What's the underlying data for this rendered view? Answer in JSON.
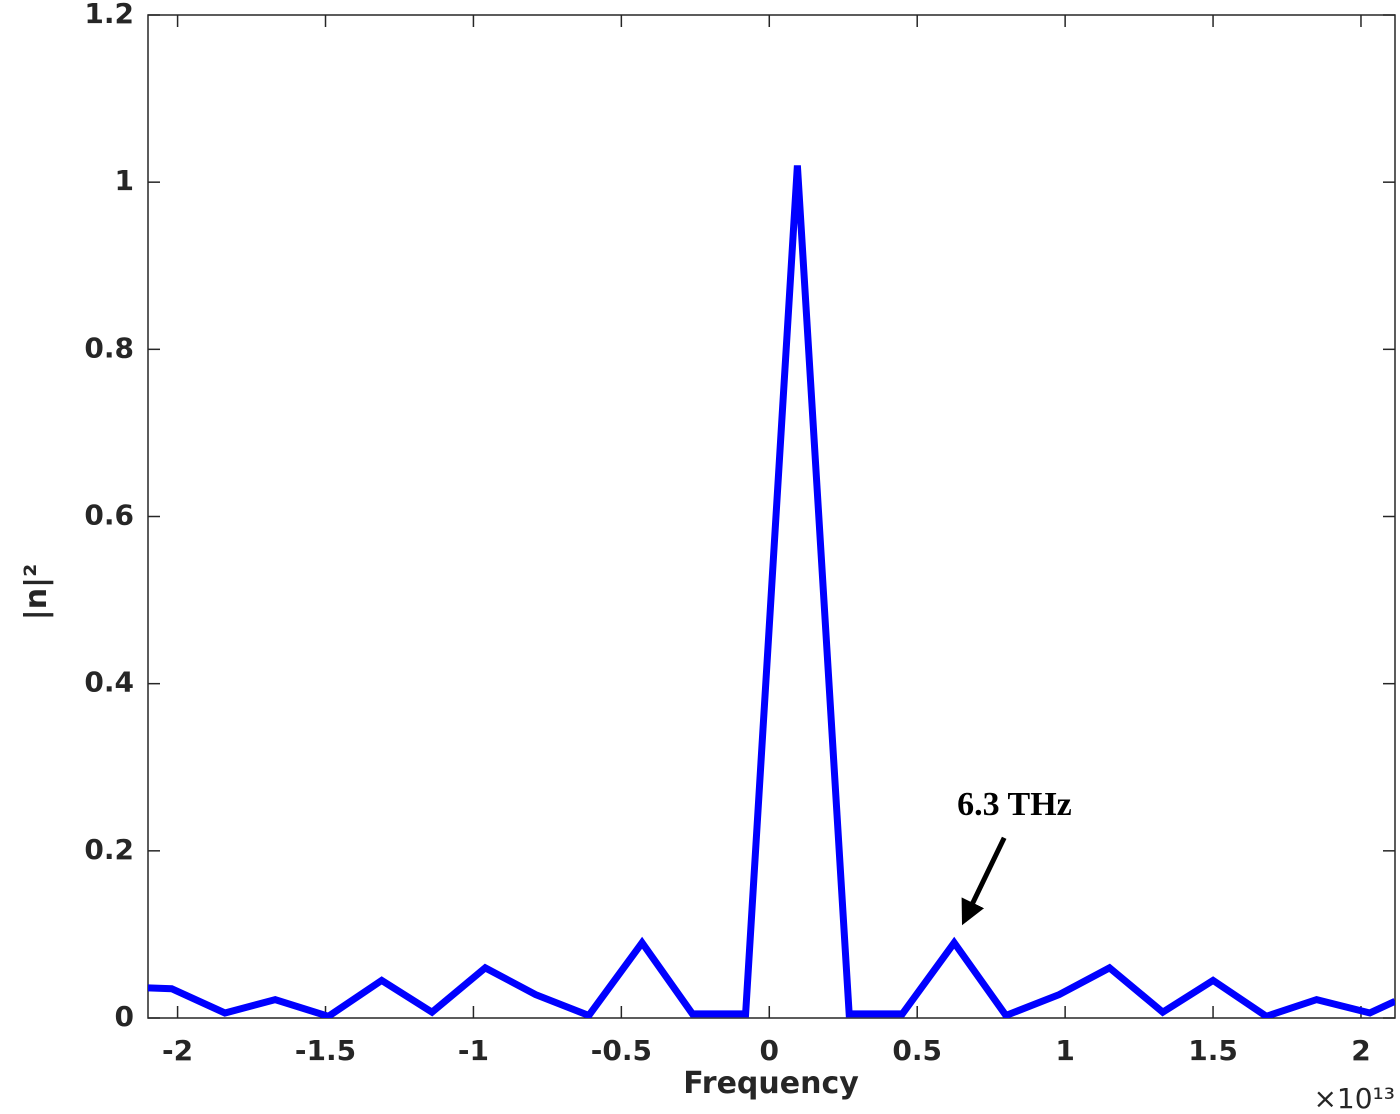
{
  "chart_data": {
    "type": "line",
    "xlabel": "Frequency",
    "ylabel": "|n|²",
    "x_multiplier": "×10¹³",
    "annotation": {
      "text": "6.3 THz",
      "x": 0.625,
      "y": 0.09
    },
    "x": [
      -2.1,
      -2.02,
      -1.84,
      -1.67,
      -1.49,
      -1.31,
      -1.14,
      -0.96,
      -0.79,
      -0.61,
      -0.43,
      -0.26,
      -0.08,
      0.095,
      0.27,
      0.45,
      0.625,
      0.8,
      0.98,
      1.15,
      1.33,
      1.5,
      1.68,
      1.85,
      2.03,
      2.115
    ],
    "series": [
      {
        "color": "#0000ff",
        "values": [
          0.036,
          0.035,
          0.006,
          0.022,
          0.002,
          0.045,
          0.007,
          0.06,
          0.028,
          0.003,
          0.09,
          0.005,
          0.005,
          1.02,
          0.005,
          0.005,
          0.09,
          0.003,
          0.028,
          0.06,
          0.007,
          0.045,
          0.002,
          0.022,
          0.006,
          0.02
        ]
      }
    ],
    "xlim": [
      -2.1,
      2.115
    ],
    "ylim": [
      0,
      1.2
    ],
    "xticks": [
      -2,
      -1.5,
      -1,
      -0.5,
      0,
      0.5,
      1,
      1.5,
      2
    ],
    "yticks": [
      0,
      0.2,
      0.4,
      0.6,
      0.8,
      1,
      1.2
    ]
  }
}
